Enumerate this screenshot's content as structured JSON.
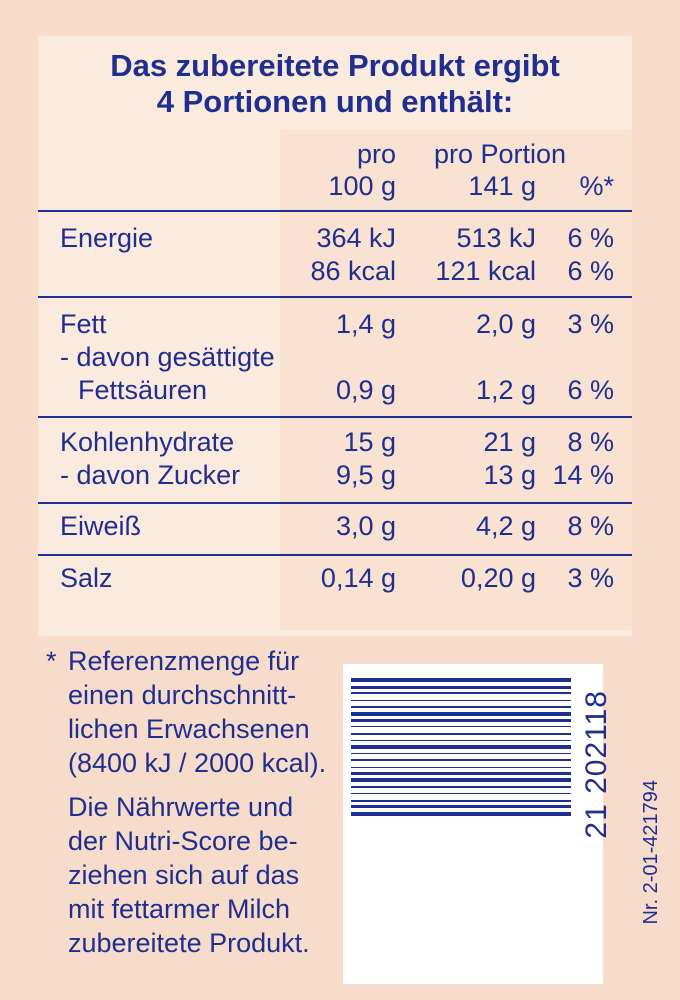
{
  "header": {
    "line1": "Das zubereitete Produkt ergibt",
    "line2": "4 Portionen und enthält:"
  },
  "columns": {
    "per100_line1": "pro",
    "per100_line2": "100 g",
    "portion_line1": "pro Portion",
    "portion_amount": "141 g",
    "percent": "%*"
  },
  "rows": {
    "energie": {
      "label": "Energie",
      "kj_100": "364 kJ",
      "kj_portion": "513 kJ",
      "kj_pct": "6 %",
      "kcal_100": "86 kcal",
      "kcal_portion": "121 kcal",
      "kcal_pct": "6 %"
    },
    "fett": {
      "label": "Fett",
      "v100": "1,4 g",
      "vportion": "2,0 g",
      "pct": "3 %",
      "sub_label_1": "- davon gesättigte",
      "sub_label_2": "Fettsäuren",
      "sub_v100": "0,9 g",
      "sub_vportion": "1,2 g",
      "sub_pct": "6 %"
    },
    "kohlenhydrate": {
      "label": "Kohlenhydrate",
      "v100": "15 g",
      "vportion": "21 g",
      "pct": "8 %",
      "sub_label": "- davon Zucker",
      "sub_v100": "9,5 g",
      "sub_vportion": "13 g",
      "sub_pct": "14 %"
    },
    "eiweiss": {
      "label": "Eiweiß",
      "v100": "3,0 g",
      "vportion": "4,2 g",
      "pct": "8 %"
    },
    "salz": {
      "label": "Salz",
      "v100": "0,14 g",
      "vportion": "0,20 g",
      "pct": "3 %"
    }
  },
  "footnote": {
    "star": "*",
    "ref_lines": [
      "Referenzmenge für",
      "einen durchschnitt-",
      "lichen Erwachsenen",
      "(8400 kJ / 2000 kcal)."
    ],
    "note_lines": [
      "Die Nährwerte und",
      "der Nutri-Score be-",
      "ziehen sich auf das",
      "mit fettarmer Milch",
      "zubereitete Produkt."
    ]
  },
  "barcode": {
    "digits": "21 202118",
    "article_number": "Nr. 2-01-421794"
  },
  "colors": {
    "ink": "#1f2f8f",
    "background": "#f7dccb",
    "barcode_bg": "#ffffff"
  }
}
